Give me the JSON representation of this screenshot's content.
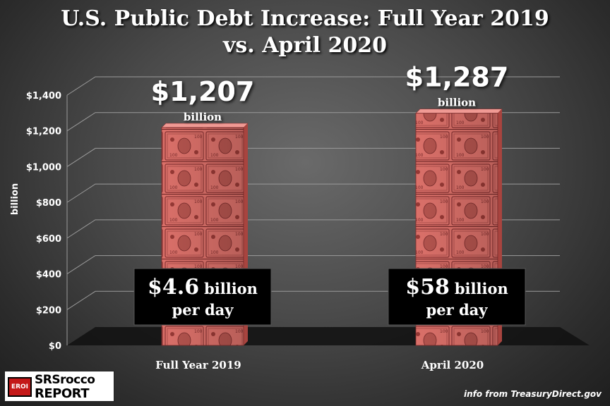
{
  "title": {
    "line1": "U.S. Public Debt Increase:  Full Year 2019",
    "line2": "vs. April 2020"
  },
  "chart_data": {
    "type": "bar",
    "title": "U.S. Public Debt Increase:  Full Year 2019 vs. April 2020",
    "xlabel": "",
    "ylabel": "billion",
    "categories": [
      "Full Year 2019",
      "April 2020"
    ],
    "values": [
      1207,
      1287
    ],
    "ylim": [
      0,
      1400
    ],
    "yticks": [
      0,
      200,
      400,
      600,
      800,
      1000,
      1200,
      1400
    ],
    "ytick_labels": [
      "$0",
      "$200",
      "$400",
      "$600",
      "$800",
      "$1,000",
      "$1,200",
      "$1,400"
    ],
    "grid": true,
    "value_labels": [
      {
        "amount": "$1,207",
        "unit": "billion"
      },
      {
        "amount": "$1,287",
        "unit": "billion"
      }
    ],
    "annotations": [
      {
        "amount": "$4.6",
        "unit": "billion",
        "line2": "per day"
      },
      {
        "amount": "$58",
        "unit": "billion",
        "line2": "per day"
      }
    ]
  },
  "colors": {
    "bar": "#e0706a",
    "bar_dark": "#b84a46",
    "annotation_bg": "#000000",
    "axis_text": "#ffffff"
  },
  "logo": {
    "badge": "EROI",
    "line1": "SRSrocco",
    "line2": "REPORT"
  },
  "source": "info from TreasuryDirect.gov"
}
